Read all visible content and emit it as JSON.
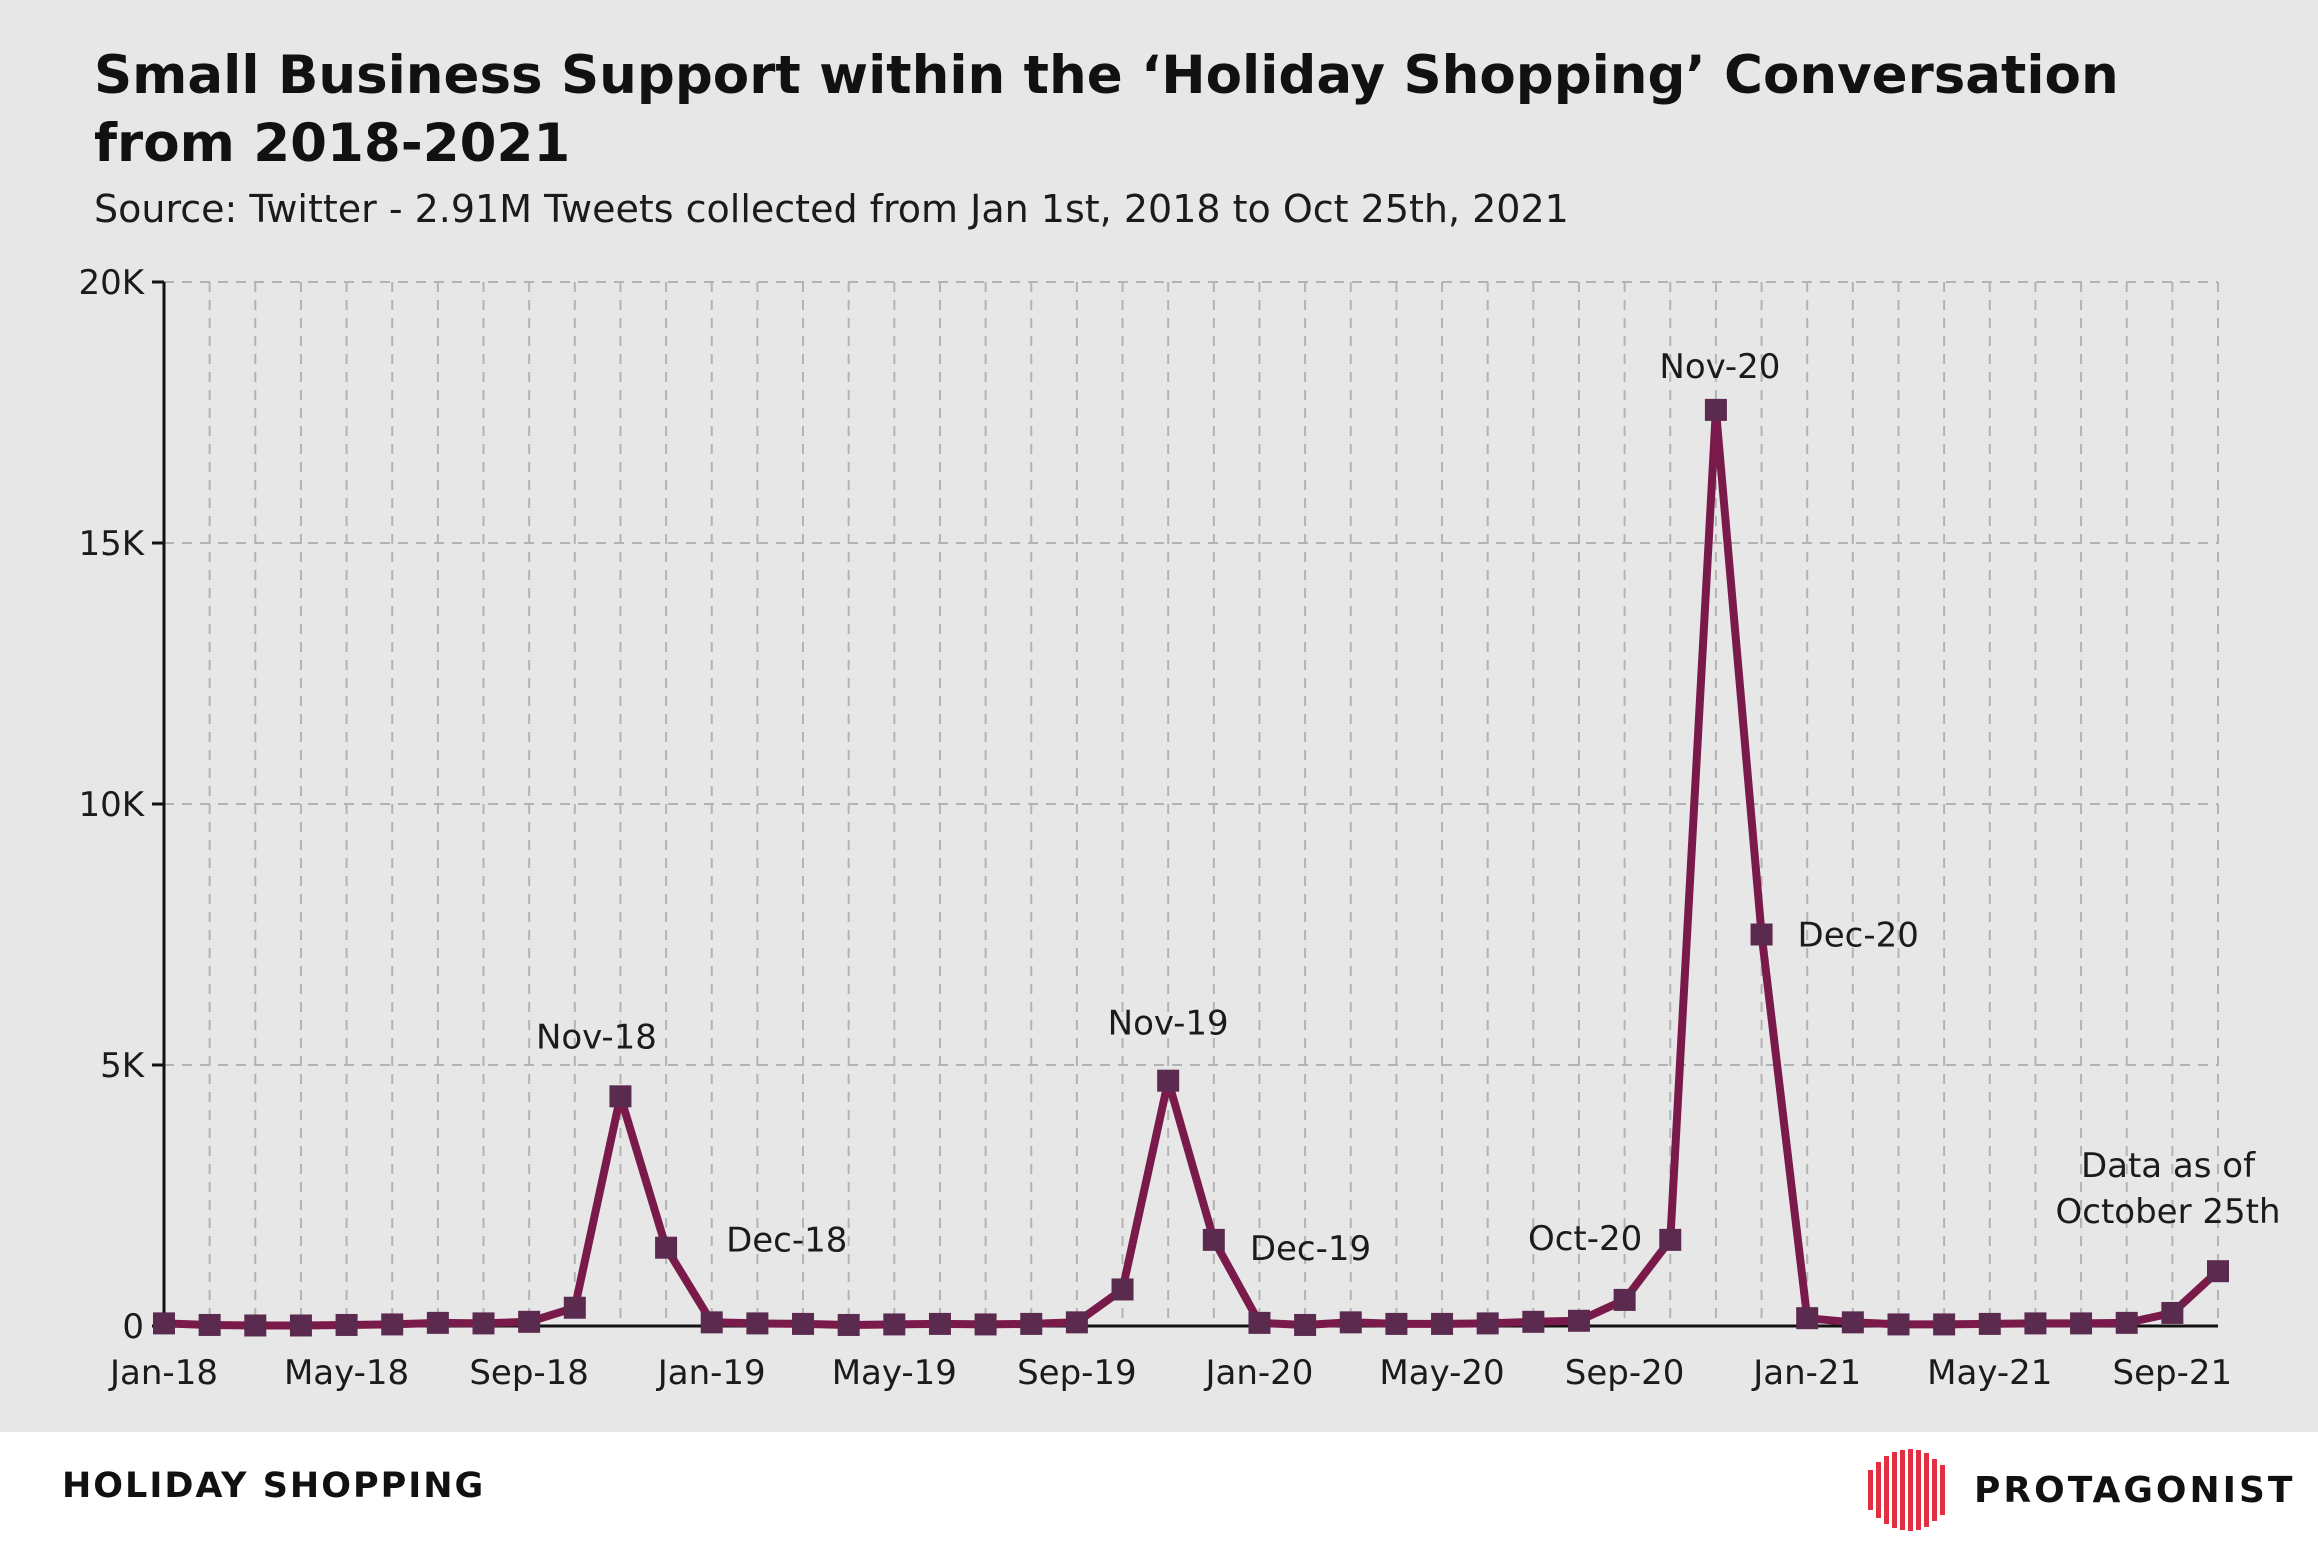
{
  "title": "Small Business Support within the ‘Holiday Shopping’ Conversation from 2018-2021",
  "subtitle": "Source: Twitter - 2.91M Tweets collected from Jan 1st, 2018 to Oct 25th, 2021",
  "footer": {
    "section_label": "HOLIDAY SHOPPING",
    "brand_name": "PROTAGONIST"
  },
  "colors": {
    "line": "#7a1a4a",
    "marker": "#5b2a4f",
    "background": "#e6e7e6",
    "grid": "#b3b3b3",
    "brand_icon": "#e03041"
  },
  "icons": {
    "brand_logo": "protagonist-head-icon"
  },
  "chart_data": {
    "type": "line",
    "title": "Small Business Support within the ‘Holiday Shopping’ Conversation from 2018-2021",
    "xlabel": "",
    "ylabel": "",
    "ylim": [
      0,
      20000
    ],
    "grid": true,
    "x": [
      "Jan-18",
      "Feb-18",
      "Mar-18",
      "Apr-18",
      "May-18",
      "Jun-18",
      "Jul-18",
      "Aug-18",
      "Sep-18",
      "Oct-18",
      "Nov-18",
      "Dec-18",
      "Jan-19",
      "Feb-19",
      "Mar-19",
      "Apr-19",
      "May-19",
      "Jun-19",
      "Jul-19",
      "Aug-19",
      "Sep-19",
      "Oct-19",
      "Nov-19",
      "Dec-19",
      "Jan-20",
      "Feb-20",
      "Mar-20",
      "Apr-20",
      "May-20",
      "Jun-20",
      "Jul-20",
      "Aug-20",
      "Sep-20",
      "Oct-20",
      "Nov-20",
      "Dec-20",
      "Jan-21",
      "Feb-21",
      "Mar-21",
      "Apr-21",
      "May-21",
      "Jun-21",
      "Jul-21",
      "Aug-21",
      "Sep-21",
      "Oct-21"
    ],
    "x_tick_labels": [
      "Jan-18",
      "May-18",
      "Sep-18",
      "Jan-19",
      "May-19",
      "Sep-19",
      "Jan-20",
      "May-20",
      "Sep-20",
      "Jan-21",
      "May-21",
      "Sep-21"
    ],
    "y_ticks": [
      0,
      5000,
      10000,
      15000,
      20000
    ],
    "y_tick_labels": [
      "0",
      "5K",
      "10K",
      "15K",
      "20K"
    ],
    "series": [
      {
        "values": [
          50,
          20,
          10,
          10,
          20,
          30,
          60,
          50,
          80,
          350,
          4400,
          1500,
          70,
          50,
          40,
          20,
          30,
          40,
          30,
          40,
          70,
          700,
          4700,
          1650,
          60,
          20,
          70,
          40,
          40,
          50,
          80,
          100,
          500,
          1650,
          17550,
          7500,
          150,
          70,
          30,
          30,
          40,
          50,
          50,
          60,
          250,
          1050
        ]
      }
    ],
    "annotations": [
      {
        "x": "Nov-18",
        "text": "Nov-18"
      },
      {
        "x": "Dec-18",
        "text": "Dec-18"
      },
      {
        "x": "Nov-19",
        "text": "Nov-19"
      },
      {
        "x": "Dec-19",
        "text": "Dec-19"
      },
      {
        "x": "Oct-20",
        "text": "Oct-20"
      },
      {
        "x": "Nov-20",
        "text": "Nov-20"
      },
      {
        "x": "Dec-20",
        "text": "Dec-20"
      },
      {
        "x": "Oct-21",
        "text": "Data as of October 25th"
      }
    ]
  }
}
